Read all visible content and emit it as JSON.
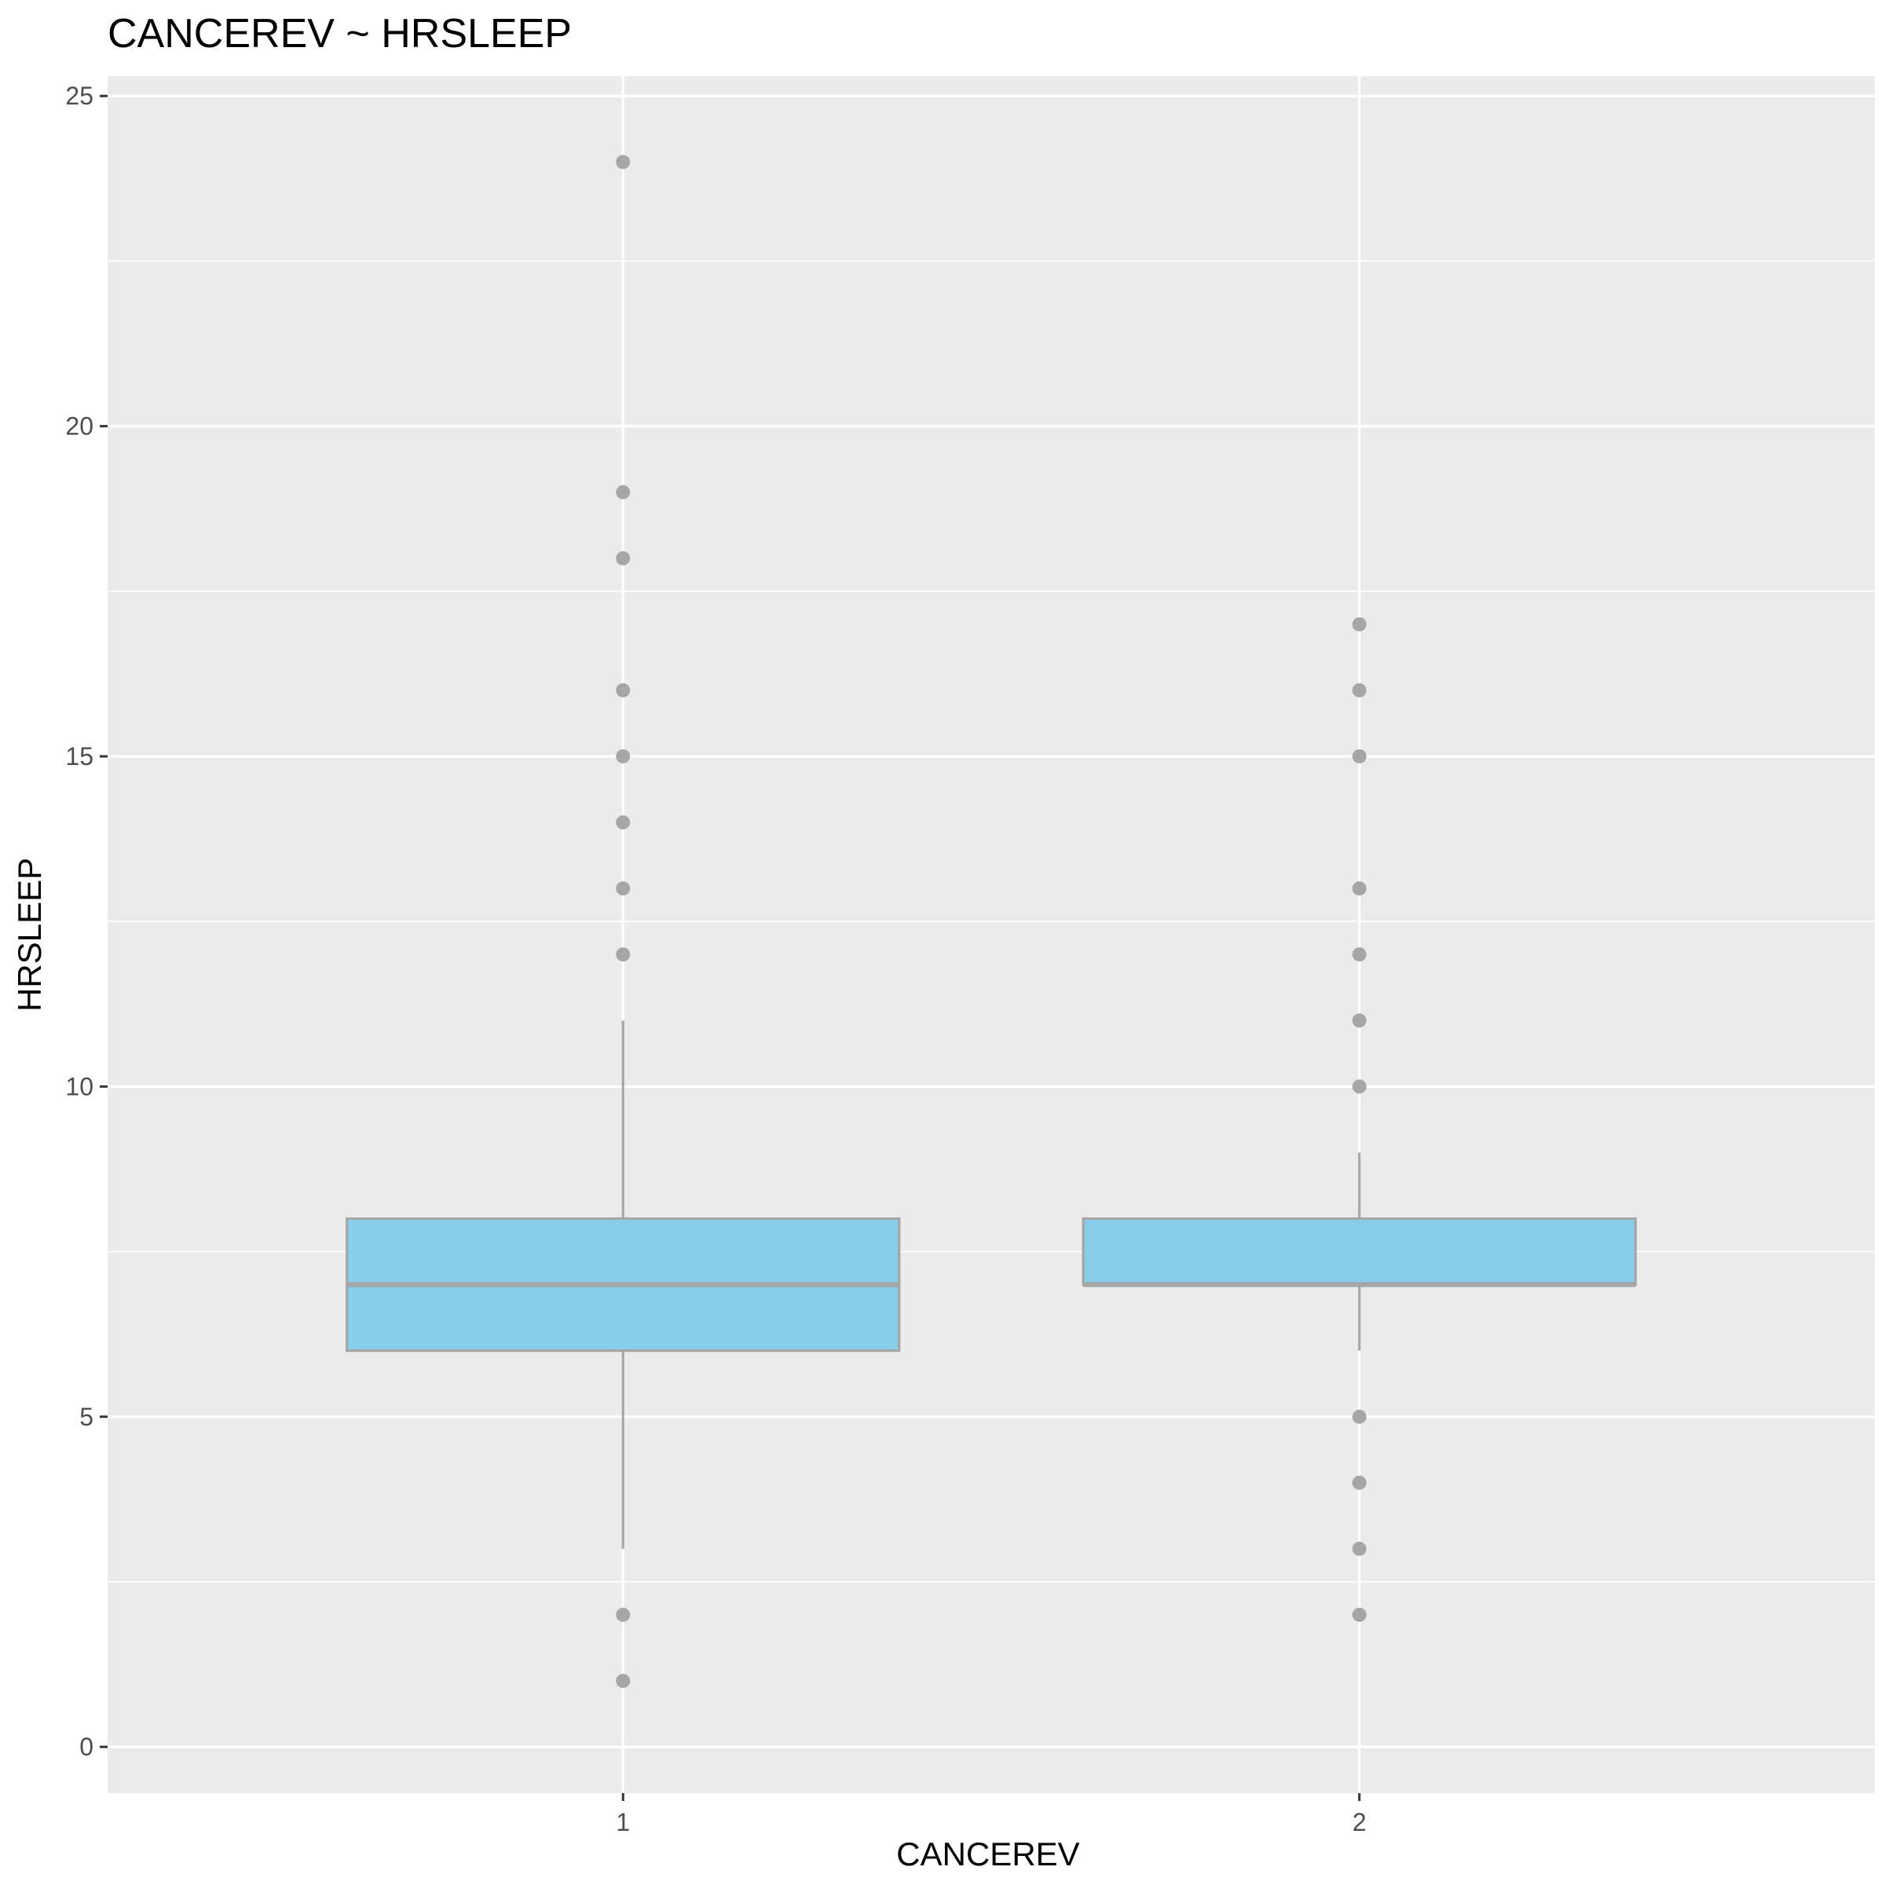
{
  "chart_data": {
    "type": "box",
    "title": "CANCEREV ~ HRSLEEP",
    "xlabel": "CANCEREV",
    "ylabel": "HRSLEEP",
    "categories": [
      "1",
      "2"
    ],
    "ylim": [
      -0.7,
      25.3
    ],
    "yticks": [
      0,
      5,
      10,
      15,
      20,
      25
    ],
    "grid": true,
    "colors": {
      "panel": "#EBEBEB",
      "grid": "#FFFFFF",
      "box_fill": "#87CEEB",
      "box_line": "#A6A6A6",
      "outlier": "#A6A6A6",
      "tick": "#333333"
    },
    "boxes": [
      {
        "category": "1",
        "lower_whisker": 3,
        "q1": 6,
        "median": 7,
        "q3": 8,
        "upper_whisker": 11,
        "outliers": [
          24,
          19,
          18,
          16,
          15,
          14,
          13,
          12,
          2,
          1
        ]
      },
      {
        "category": "2",
        "lower_whisker": 6,
        "q1": 7,
        "median": 7,
        "q3": 8,
        "upper_whisker": 9,
        "outliers": [
          17,
          16,
          15,
          13,
          12,
          11,
          10,
          5,
          4,
          3,
          2
        ]
      }
    ]
  }
}
